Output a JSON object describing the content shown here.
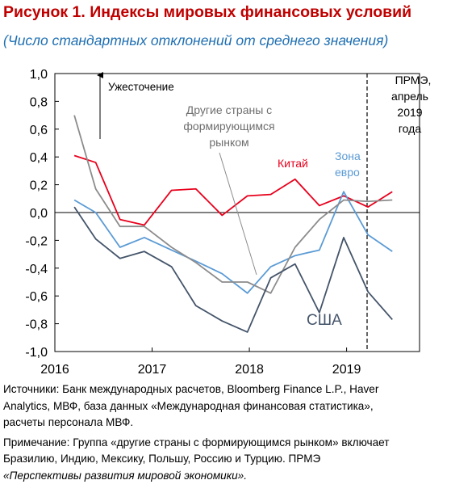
{
  "header": {
    "title": "Рисунок 1. Индексы мировых финансовых условий",
    "subtitle": "(Число стандартных отклонений от среднего значения)"
  },
  "chart_data": {
    "type": "line",
    "ylim": [
      -1.0,
      1.0
    ],
    "yticks": [
      "1,0",
      "0,8",
      "0,6",
      "0,4",
      "0,2",
      "0,0",
      "-0,2",
      "-0,4",
      "-0,6",
      "-0,8",
      "-1,0"
    ],
    "xlim": [
      2016.0,
      2019.75
    ],
    "xticks": [
      "2016",
      "2017",
      "2018",
      "2019"
    ],
    "annotations": {
      "tightening": "Ужесточение",
      "weo_line1": "ПРМЭ,",
      "weo_line2": "апрель",
      "weo_line3": "2019",
      "weo_line4": "года",
      "other_line1": "Другие страны с",
      "other_line2": "формирующимся",
      "other_line3": "рынком",
      "china": "Китай",
      "euro_line1": "Зона",
      "euro_line2": "евро",
      "usa": "США"
    },
    "series": [
      {
        "name": "Китай",
        "color": "#e8001c",
        "x": [
          2016.2,
          2016.42,
          2016.67,
          2016.92,
          2017.2,
          2017.45,
          2017.72,
          2017.98,
          2018.22,
          2018.47,
          2018.72,
          2018.97,
          2019.22,
          2019.47
        ],
        "values": [
          0.41,
          0.36,
          -0.05,
          -0.09,
          0.16,
          0.17,
          -0.02,
          0.12,
          0.13,
          0.24,
          0.05,
          0.12,
          0.04,
          0.15
        ]
      },
      {
        "name": "Зона евро",
        "color": "#5b9bd5",
        "x": [
          2016.2,
          2016.42,
          2016.67,
          2016.92,
          2017.2,
          2017.45,
          2017.72,
          2017.98,
          2018.22,
          2018.47,
          2018.72,
          2018.97,
          2019.22,
          2019.47
        ],
        "values": [
          0.09,
          0.0,
          -0.25,
          -0.18,
          -0.27,
          -0.35,
          -0.44,
          -0.58,
          -0.39,
          -0.31,
          -0.27,
          0.15,
          -0.16,
          -0.28
        ]
      },
      {
        "name": "Другие страны с формирующимся рынком",
        "color": "#8c8c8c",
        "x": [
          2016.2,
          2016.42,
          2016.67,
          2016.92,
          2017.2,
          2017.45,
          2017.72,
          2017.98,
          2018.22,
          2018.47,
          2018.72,
          2018.97,
          2019.22,
          2019.47
        ],
        "values": [
          0.7,
          0.17,
          -0.1,
          -0.1,
          -0.25,
          -0.36,
          -0.5,
          -0.5,
          -0.58,
          -0.25,
          -0.05,
          0.09,
          0.08,
          0.09
        ]
      },
      {
        "name": "США",
        "color": "#44546a",
        "x": [
          2016.2,
          2016.42,
          2016.67,
          2016.92,
          2017.2,
          2017.45,
          2017.72,
          2017.98,
          2018.22,
          2018.47,
          2018.72,
          2018.97,
          2019.22,
          2019.47
        ],
        "values": [
          0.04,
          -0.19,
          -0.33,
          -0.28,
          -0.39,
          -0.67,
          -0.78,
          -0.86,
          -0.47,
          -0.37,
          -0.72,
          -0.18,
          -0.57,
          -0.77
        ]
      }
    ],
    "grid": false,
    "legend": "none"
  },
  "notes": {
    "sources_line1": "Источники: Банк международных расчетов, Bloomberg Finance L.P., Haver",
    "sources_line2": "Analytics, МВФ, база данных «Международная финансовая статистика»,",
    "sources_line3": "расчеты персонала МВФ.",
    "note_line1": "Примечание: Группа «другие страны с формирующимся рынком» включает",
    "note_line2": "Бразилию, Индию, Мексику, Польшу, Россию и Турцию. ПРМЭ",
    "note_line3": "«Перспективы развития мировой экономики»."
  }
}
